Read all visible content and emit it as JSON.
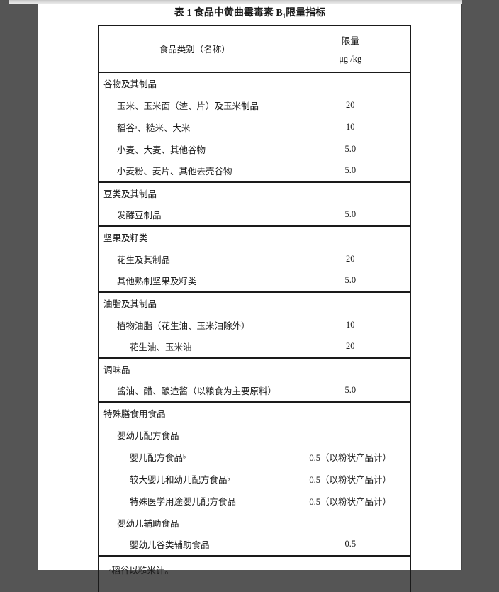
{
  "viewer": {
    "background_color": "#555555",
    "page_color": "#ffffff",
    "top_strip_color": "#e8e8e8",
    "table_border_color": "#1a1a1a"
  },
  "doc": {
    "title_main": "表 1 食品中黄曲霉毒素 B",
    "title_sub": "1",
    "title_tail": "限量指标"
  },
  "table": {
    "header": {
      "col_food": "食品类别（名称）",
      "limit_line1": "限量",
      "limit_line2": "μg /kg"
    },
    "sections": [
      {
        "rows": [
          {
            "label": "谷物及其制品",
            "indent": 0,
            "value": ""
          },
          {
            "label": "玉米、玉米面（渣、片）及玉米制品",
            "indent": 1,
            "value": "20"
          },
          {
            "label": "稻谷ᵃ、糙米、大米",
            "indent": 1,
            "value": "10"
          },
          {
            "label": "小麦、大麦、其他谷物",
            "indent": 1,
            "value": "5.0"
          },
          {
            "label": "小麦粉、麦片、其他去壳谷物",
            "indent": 1,
            "value": "5.0"
          }
        ]
      },
      {
        "rows": [
          {
            "label": "豆类及其制品",
            "indent": 0,
            "value": ""
          },
          {
            "label": "发酵豆制品",
            "indent": 1,
            "value": "5.0"
          }
        ]
      },
      {
        "rows": [
          {
            "label": "坚果及籽类",
            "indent": 0,
            "value": ""
          },
          {
            "label": "花生及其制品",
            "indent": 1,
            "value": "20"
          },
          {
            "label": "其他熟制坚果及籽类",
            "indent": 1,
            "value": "5.0"
          }
        ]
      },
      {
        "rows": [
          {
            "label": "油脂及其制品",
            "indent": 0,
            "value": ""
          },
          {
            "label": "植物油脂（花生油、玉米油除外）",
            "indent": 1,
            "value": "10"
          },
          {
            "label": "花生油、玉米油",
            "indent": 2,
            "value": "20"
          }
        ]
      },
      {
        "rows": [
          {
            "label": "调味品",
            "indent": 0,
            "value": ""
          },
          {
            "label": "酱油、醋、酿造酱（以粮食为主要原料）",
            "indent": 1,
            "value": "5.0"
          }
        ]
      },
      {
        "rows": [
          {
            "label": "特殊膳食用食品",
            "indent": 0,
            "value": ""
          },
          {
            "label": "婴幼儿配方食品",
            "indent": 1,
            "value": ""
          },
          {
            "label": "婴儿配方食品ᵇ",
            "indent": 2,
            "value": "0.5（以粉状产品计）"
          },
          {
            "label": "较大婴儿和幼儿配方食品ᵇ",
            "indent": 2,
            "value": "0.5（以粉状产品计）"
          },
          {
            "label": "特殊医学用途婴儿配方食品",
            "indent": 2,
            "value": "0.5（以粉状产品计）"
          },
          {
            "label": "婴幼儿辅助食品",
            "indent": 1,
            "value": ""
          },
          {
            "label": "婴幼儿谷类辅助食品",
            "indent": 2,
            "value": "0.5"
          }
        ]
      }
    ],
    "footnotes": [
      "ᵃ稻谷以糙米计。"
    ]
  }
}
